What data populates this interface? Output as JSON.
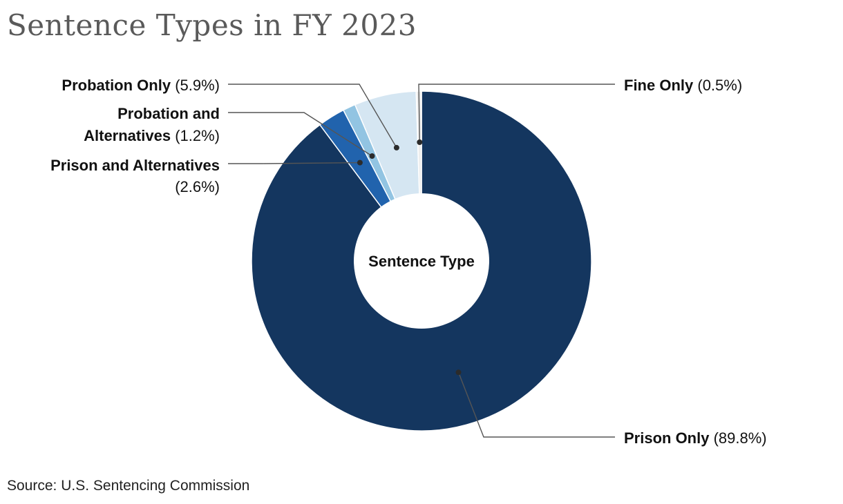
{
  "title": "Sentence Types in FY 2023",
  "source": "Source: U.S. Sentencing Commission",
  "chart_data": {
    "type": "pie",
    "donut": true,
    "center_label": "Sentence Type",
    "slices": [
      {
        "name": "Prison Only",
        "value": 89.8,
        "pct_label": "(89.8%)",
        "color": "#14365f"
      },
      {
        "name": "Prison and Alternatives",
        "value": 2.6,
        "pct_label": "(2.6%)",
        "color": "#2163ad"
      },
      {
        "name": "Probation and Alternatives",
        "value": 1.2,
        "pct_label": "(1.2%)",
        "color": "#92c4e2"
      },
      {
        "name": "Probation Only",
        "value": 5.9,
        "pct_label": "(5.9%)",
        "color": "#d5e6f2"
      },
      {
        "name": "Fine Only",
        "value": 0.5,
        "pct_label": "(0.5%)",
        "color": "#eeeeee"
      }
    ],
    "labels": [
      {
        "lines": [
          [
            {
              "t": "Prison Only",
              "b": true
            },
            {
              "t": " (89.8%)",
              "b": false
            }
          ]
        ]
      },
      {
        "lines": [
          [
            {
              "t": "Prison and Alternatives",
              "b": true
            }
          ],
          [
            {
              "t": "(2.6%)",
              "b": false
            }
          ]
        ]
      },
      {
        "lines": [
          [
            {
              "t": "Probation and",
              "b": true
            }
          ],
          [
            {
              "t": "Alternatives",
              "b": true
            },
            {
              "t": " (1.2%)",
              "b": false
            }
          ]
        ]
      },
      {
        "lines": [
          [
            {
              "t": "Probation Only",
              "b": true
            },
            {
              "t": " (5.9%)",
              "b": false
            }
          ]
        ]
      },
      {
        "lines": [
          [
            {
              "t": "Fine Only",
              "b": true
            },
            {
              "t": " (0.5%)",
              "b": false
            }
          ]
        ]
      }
    ]
  }
}
